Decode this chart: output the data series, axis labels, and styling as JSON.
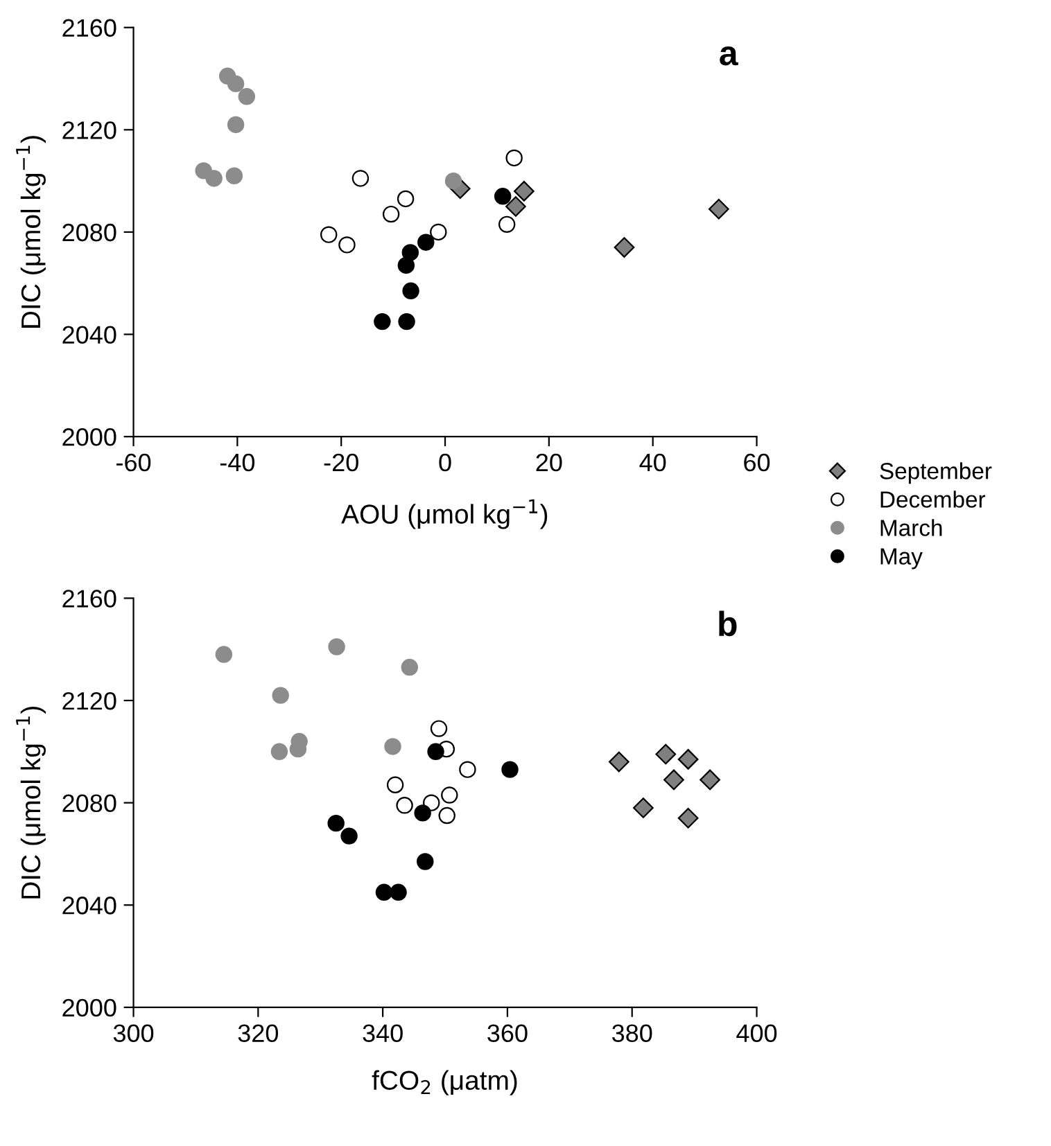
{
  "chart_data": [
    {
      "type": "scatter",
      "xlabel": "AOU (μmol kg$^{−1}$)",
      "ylabel": "DIC (μmol kg$^{−1}$)",
      "annotations": [
        "a"
      ],
      "xlim": [
        -60,
        60
      ],
      "xticks": [
        -60,
        -40,
        -20,
        0,
        20,
        40,
        60
      ],
      "ylim": [
        2000,
        2160
      ],
      "yticks": [
        2000,
        2040,
        2080,
        2120,
        2160
      ],
      "grid": false,
      "legend": "right",
      "series": [
        {
          "name": "September",
          "marker": "diamond",
          "color": "#808080",
          "x": [
            2.9,
            13.6,
            15.2,
            34.5,
            52.7
          ],
          "values": [
            2097,
            2090,
            2096,
            2074,
            2089
          ]
        },
        {
          "name": "December",
          "marker": "circle",
          "color": "#ffffff",
          "x": [
            -22.4,
            -18.9,
            -16.3,
            -10.4,
            -7.6,
            -1.3,
            13.3,
            11.9
          ],
          "values": [
            2079,
            2075,
            2101,
            2087,
            2093,
            2080,
            2109,
            2083
          ]
        },
        {
          "name": "March",
          "marker": "circle",
          "color": "#8c8c8c",
          "x": [
            -41.9,
            -40.3,
            -38.2,
            -40.3,
            -46.5,
            -44.5,
            -40.6,
            1.6
          ],
          "values": [
            2141,
            2138,
            2133,
            2122,
            2104,
            2101,
            2102,
            2100
          ]
        },
        {
          "name": "May",
          "marker": "circle",
          "color": "#000000",
          "x": [
            -12.1,
            -7.4,
            -6.6,
            -7.5,
            -6.7,
            -3.7,
            11.1
          ],
          "values": [
            2045,
            2045,
            2057,
            2067,
            2072,
            2076,
            2094
          ]
        }
      ]
    },
    {
      "type": "scatter",
      "xlabel": "fCO$_{2}$ (μatm)",
      "ylabel": "DIC (μmol kg$^{−1}$)",
      "annotations": [
        "b"
      ],
      "xlim": [
        300,
        400
      ],
      "xticks": [
        300,
        320,
        340,
        360,
        380,
        400
      ],
      "ylim": [
        2000,
        2160
      ],
      "yticks": [
        2000,
        2040,
        2080,
        2120,
        2160
      ],
      "grid": false,
      "series": [
        {
          "marker": "diamond",
          "color": "#808080",
          "x": [
            377.9,
            381.8,
            385.4,
            386.7,
            389.0,
            389.0,
            392.5
          ],
          "values": [
            2096,
            2078,
            2099,
            2089,
            2097,
            2074,
            2089
          ]
        },
        {
          "marker": "circle",
          "color": "#ffffff",
          "x": [
            342.0,
            343.5,
            347.8,
            349.0,
            350.2,
            350.7,
            350.3,
            353.6
          ],
          "values": [
            2087,
            2079,
            2080,
            2109,
            2101,
            2083,
            2075,
            2093
          ]
        },
        {
          "marker": "circle",
          "color": "#8c8c8c",
          "x": [
            314.5,
            332.6,
            344.3,
            323.6,
            323.4,
            326.4,
            326.6,
            341.6
          ],
          "values": [
            2138,
            2141,
            2133,
            2122,
            2100,
            2101,
            2104,
            2102
          ]
        },
        {
          "marker": "circle",
          "color": "#000000",
          "x": [
            332.5,
            334.6,
            340.2,
            342.5,
            346.4,
            346.8,
            348.5,
            360.4
          ],
          "values": [
            2072,
            2067,
            2045,
            2045,
            2076,
            2057,
            2100,
            2093
          ]
        }
      ]
    }
  ]
}
